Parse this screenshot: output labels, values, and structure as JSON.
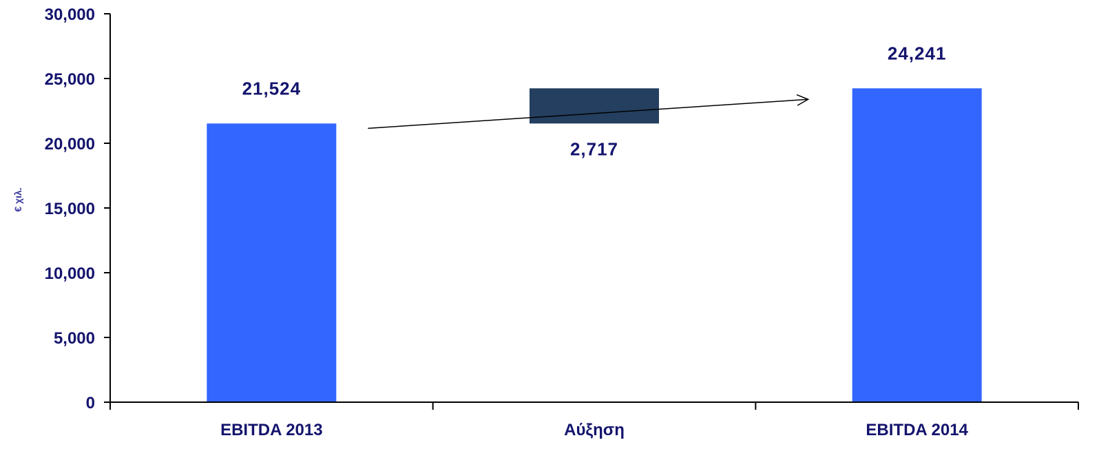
{
  "chart_data": {
    "type": "bar",
    "subtype": "waterfall",
    "ylabel": "€ χιλ.",
    "ylim": [
      0,
      30000
    ],
    "yticks": [
      0,
      5000,
      10000,
      15000,
      20000,
      25000,
      30000
    ],
    "ytick_labels": [
      "0",
      "5,000",
      "10,000",
      "15,000",
      "20,000",
      "25,000",
      "30,000"
    ],
    "grid": false,
    "legend": "none",
    "categories": [
      "EBITDA 2013",
      "Αύξηση",
      "EBITDA 2014"
    ],
    "bars": [
      {
        "category": "EBITDA 2013",
        "base": 0,
        "value": 21524,
        "label": "21,524",
        "label_position": "above",
        "color": "#3366ff"
      },
      {
        "category": "Αύξηση",
        "base": 21524,
        "value": 2717,
        "label": "2,717",
        "label_position": "below",
        "color": "#243f60"
      },
      {
        "category": "EBITDA 2014",
        "base": 0,
        "value": 24241,
        "label": "24,241",
        "label_position": "above",
        "color": "#3366ff"
      }
    ],
    "annotation": {
      "type": "arrow",
      "from_category": "EBITDA 2013",
      "to_category": "EBITDA 2014"
    },
    "colors": {
      "text": "#14146e",
      "axis_title": "#3c3ca0",
      "axis": "#000000"
    }
  }
}
